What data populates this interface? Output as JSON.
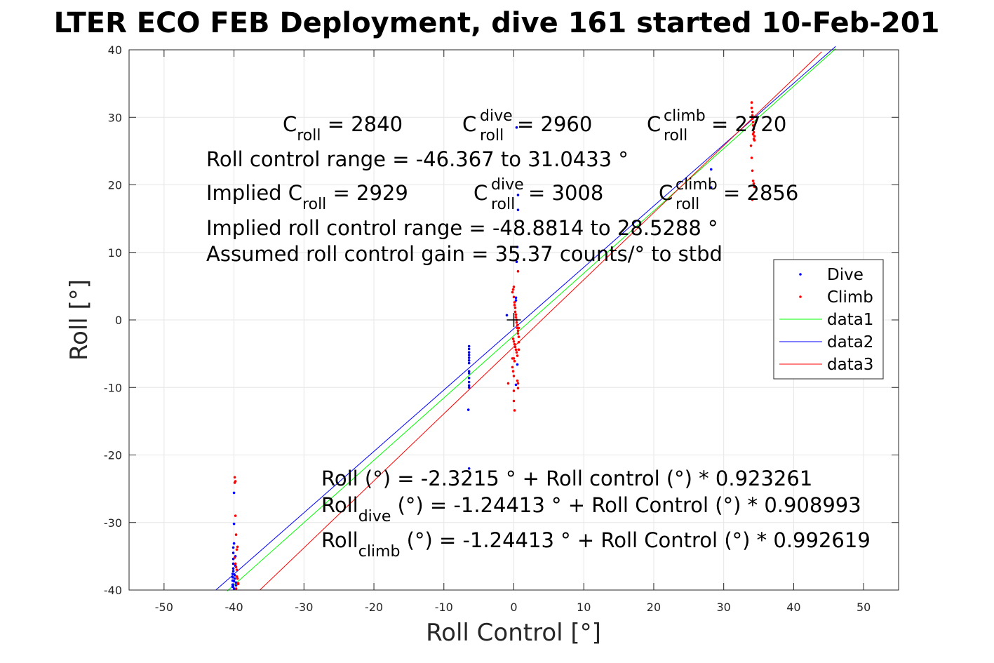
{
  "chart_data": {
    "type": "scatter",
    "title": "LTER ECO FEB Deployment, dive 161 started 10-Feb-201",
    "xlabel": "Roll Control [°]",
    "ylabel": "Roll [°]",
    "xlim": [
      -55,
      55
    ],
    "ylim": [
      -40,
      40
    ],
    "xticks": [
      -50,
      -40,
      -30,
      -20,
      -10,
      0,
      10,
      20,
      30,
      40,
      50
    ],
    "yticks": [
      -40,
      -30,
      -20,
      -10,
      0,
      10,
      20,
      30,
      40
    ],
    "xtick_labels": [
      "-50",
      "-40",
      "-30",
      "-20",
      "-10",
      "0",
      "10",
      "20",
      "30",
      "40",
      "50"
    ],
    "ytick_labels": [
      "-40",
      "-30",
      "-20",
      "-10",
      "0",
      "10",
      "20",
      "30",
      "40"
    ],
    "grid": true,
    "legend_position": "right",
    "colors": {
      "dive": "#0000ff",
      "climb": "#ff0000",
      "data1": "#00ff00",
      "data2": "#0000ff",
      "data3": "#ff0000"
    },
    "series": [
      {
        "name": "Dive",
        "kind": "points",
        "color": "#0000ff",
        "x": [
          -40.2,
          -40.2,
          -40.2,
          -40.2,
          -40.2,
          -40.1,
          -40.1,
          -40.1,
          -40.1,
          -40.1,
          -40.1,
          -40,
          -40,
          -40,
          -40,
          -40,
          -39.9,
          -39.9,
          -39.8,
          -39.8,
          -39.7,
          -39.7,
          -6.4,
          -6.4,
          -6.4,
          -6.4,
          -6.4,
          -6.4,
          -6.4,
          -6.4,
          -6.4,
          -6.4,
          -6.4,
          -6.4,
          -6.4,
          -6.5,
          -6.4,
          -1,
          0.3,
          0.3,
          0.4,
          0.5,
          0.6,
          0.6,
          0.4,
          0.5,
          0.3,
          28.2,
          28.2
        ],
        "y": [
          -39.5,
          -39.2,
          -38.6,
          -38.1,
          -37.6,
          -37.2,
          -36.8,
          -36.1,
          -35.4,
          -34.5,
          -33.7,
          -33.1,
          -30.2,
          -25.6,
          -39.8,
          -38.7,
          -38.3,
          -37.8,
          -36.4,
          -35,
          -38.9,
          -39.3,
          -3.9,
          -4.3,
          -4.8,
          -5.2,
          -5.6,
          -6,
          -6.4,
          -7.6,
          -7.9,
          -8.6,
          -9.2,
          -9.7,
          -10,
          -13.3,
          -22,
          0.7,
          2.9,
          3.3,
          8.6,
          10.8,
          16.3,
          18.5,
          28.5,
          -6.6,
          -9.6,
          22.3,
          19.6
        ]
      },
      {
        "name": "Climb",
        "kind": "points",
        "color": "#ff0000",
        "x": [
          -39.9,
          -39.9,
          -39.8,
          -39.8,
          -39.7,
          -39.6,
          -39.5,
          -39.9,
          -39.8,
          -39.7,
          -39.6,
          -39.6,
          -39.5,
          -39.4,
          -39.7,
          -39.4,
          -0.2,
          -0.1,
          0,
          0,
          0.1,
          0.1,
          0.2,
          0.2,
          0.3,
          0.3,
          0.4,
          0.4,
          0.5,
          0.5,
          0.6,
          0.6,
          0.7,
          -0.1,
          0,
          0.1,
          0.2,
          0.3,
          0.4,
          0.5,
          0,
          0.1,
          -0.2,
          -0.1,
          0,
          0.5,
          0.6,
          0.6,
          0.7,
          0.7,
          -0.8,
          -0.2,
          0,
          0,
          0.1,
          0.6,
          0.7,
          34,
          34,
          34.1,
          34.1,
          34.1,
          34.2,
          34.2,
          34.3,
          34.3,
          34.4,
          34.4,
          33.9,
          34,
          34.1,
          34.2,
          34.3,
          34.4,
          34.1,
          34.2,
          34.3
        ],
        "y": [
          -23.3,
          -24.1,
          -23.9,
          -29,
          -31.8,
          -34,
          -33.6,
          -35.2,
          -36.1,
          -36.6,
          -37,
          -38,
          -38.3,
          -39,
          -39.8,
          -39.1,
          4.1,
          4.5,
          4.9,
          3.4,
          2.6,
          2.2,
          1.8,
          1.2,
          0.8,
          0.4,
          0,
          -0.4,
          -0.8,
          -1.2,
          -1.6,
          -2,
          -2.5,
          -2.8,
          -3.2,
          -3.6,
          -4,
          -4.4,
          -4.8,
          -5.3,
          -5.7,
          -6.1,
          -7,
          -7.6,
          -8.3,
          -9,
          -9.4,
          -10.1,
          -3.3,
          -4.4,
          -9.4,
          -5.7,
          -10.5,
          -12,
          -13.4,
          7.2,
          -1.2,
          32.2,
          31.4,
          30.8,
          30.3,
          29.8,
          29.3,
          28.8,
          28.3,
          27.8,
          27.2,
          26.6,
          25.8,
          24,
          22.1,
          20.6,
          20.2,
          19.7,
          17.8,
          27.5,
          26.8
        ]
      },
      {
        "name": "data1",
        "kind": "line",
        "color": "#00ff00",
        "x": [
          -41,
          46
        ],
        "y": [
          -40.17,
          40.15
        ]
      },
      {
        "name": "data2",
        "kind": "line",
        "color": "#0000ff",
        "x": [
          -42.6,
          46
        ],
        "y": [
          -40,
          40.5
        ]
      },
      {
        "name": "data3",
        "kind": "line",
        "color": "#ff0000",
        "x": [
          -36.3,
          44
        ],
        "y": [
          -40,
          39.7
        ]
      }
    ],
    "marker": {
      "symbol": "+",
      "x": 0,
      "y": 0,
      "color": "#000000"
    },
    "annotations": {
      "c_roll": {
        "base": "C",
        "sub": "roll",
        "rest": " = 2840"
      },
      "c_dive": {
        "base": "C",
        "sup": "dive",
        "sub": "roll",
        "rest": " = 2960"
      },
      "c_climb": {
        "base": "C",
        "sup": "climb",
        "sub": "roll",
        "rest": " = 2720"
      },
      "range": "Roll control range = -46.367 to 31.0433 °",
      "implied_c_roll": {
        "base": "Implied C",
        "sub": "roll",
        "rest": " = 2929"
      },
      "implied_c_dive": {
        "base": "C",
        "sup": "dive",
        "sub": "roll",
        "rest": " = 3008"
      },
      "implied_c_climb": {
        "base": "C",
        "sup": "climb",
        "sub": "roll",
        "rest": " = 2856"
      },
      "implied_range": "Implied roll control range = -48.8814 to 28.5288 °",
      "gain": "Assumed roll control gain = 35.37 counts/° to stbd",
      "fit": "Roll (°) = -2.3215 ° + Roll control (°) * 0.923261",
      "fit_dive": {
        "base": "Roll",
        "sub": "dive",
        "rest": " (°) = -1.24413 ° + Roll Control (°) * 0.908993"
      },
      "fit_climb": {
        "base": "Roll",
        "sub": "climb",
        "rest": " (°) = -1.24413 ° + Roll Control (°) * 0.992619"
      }
    }
  }
}
